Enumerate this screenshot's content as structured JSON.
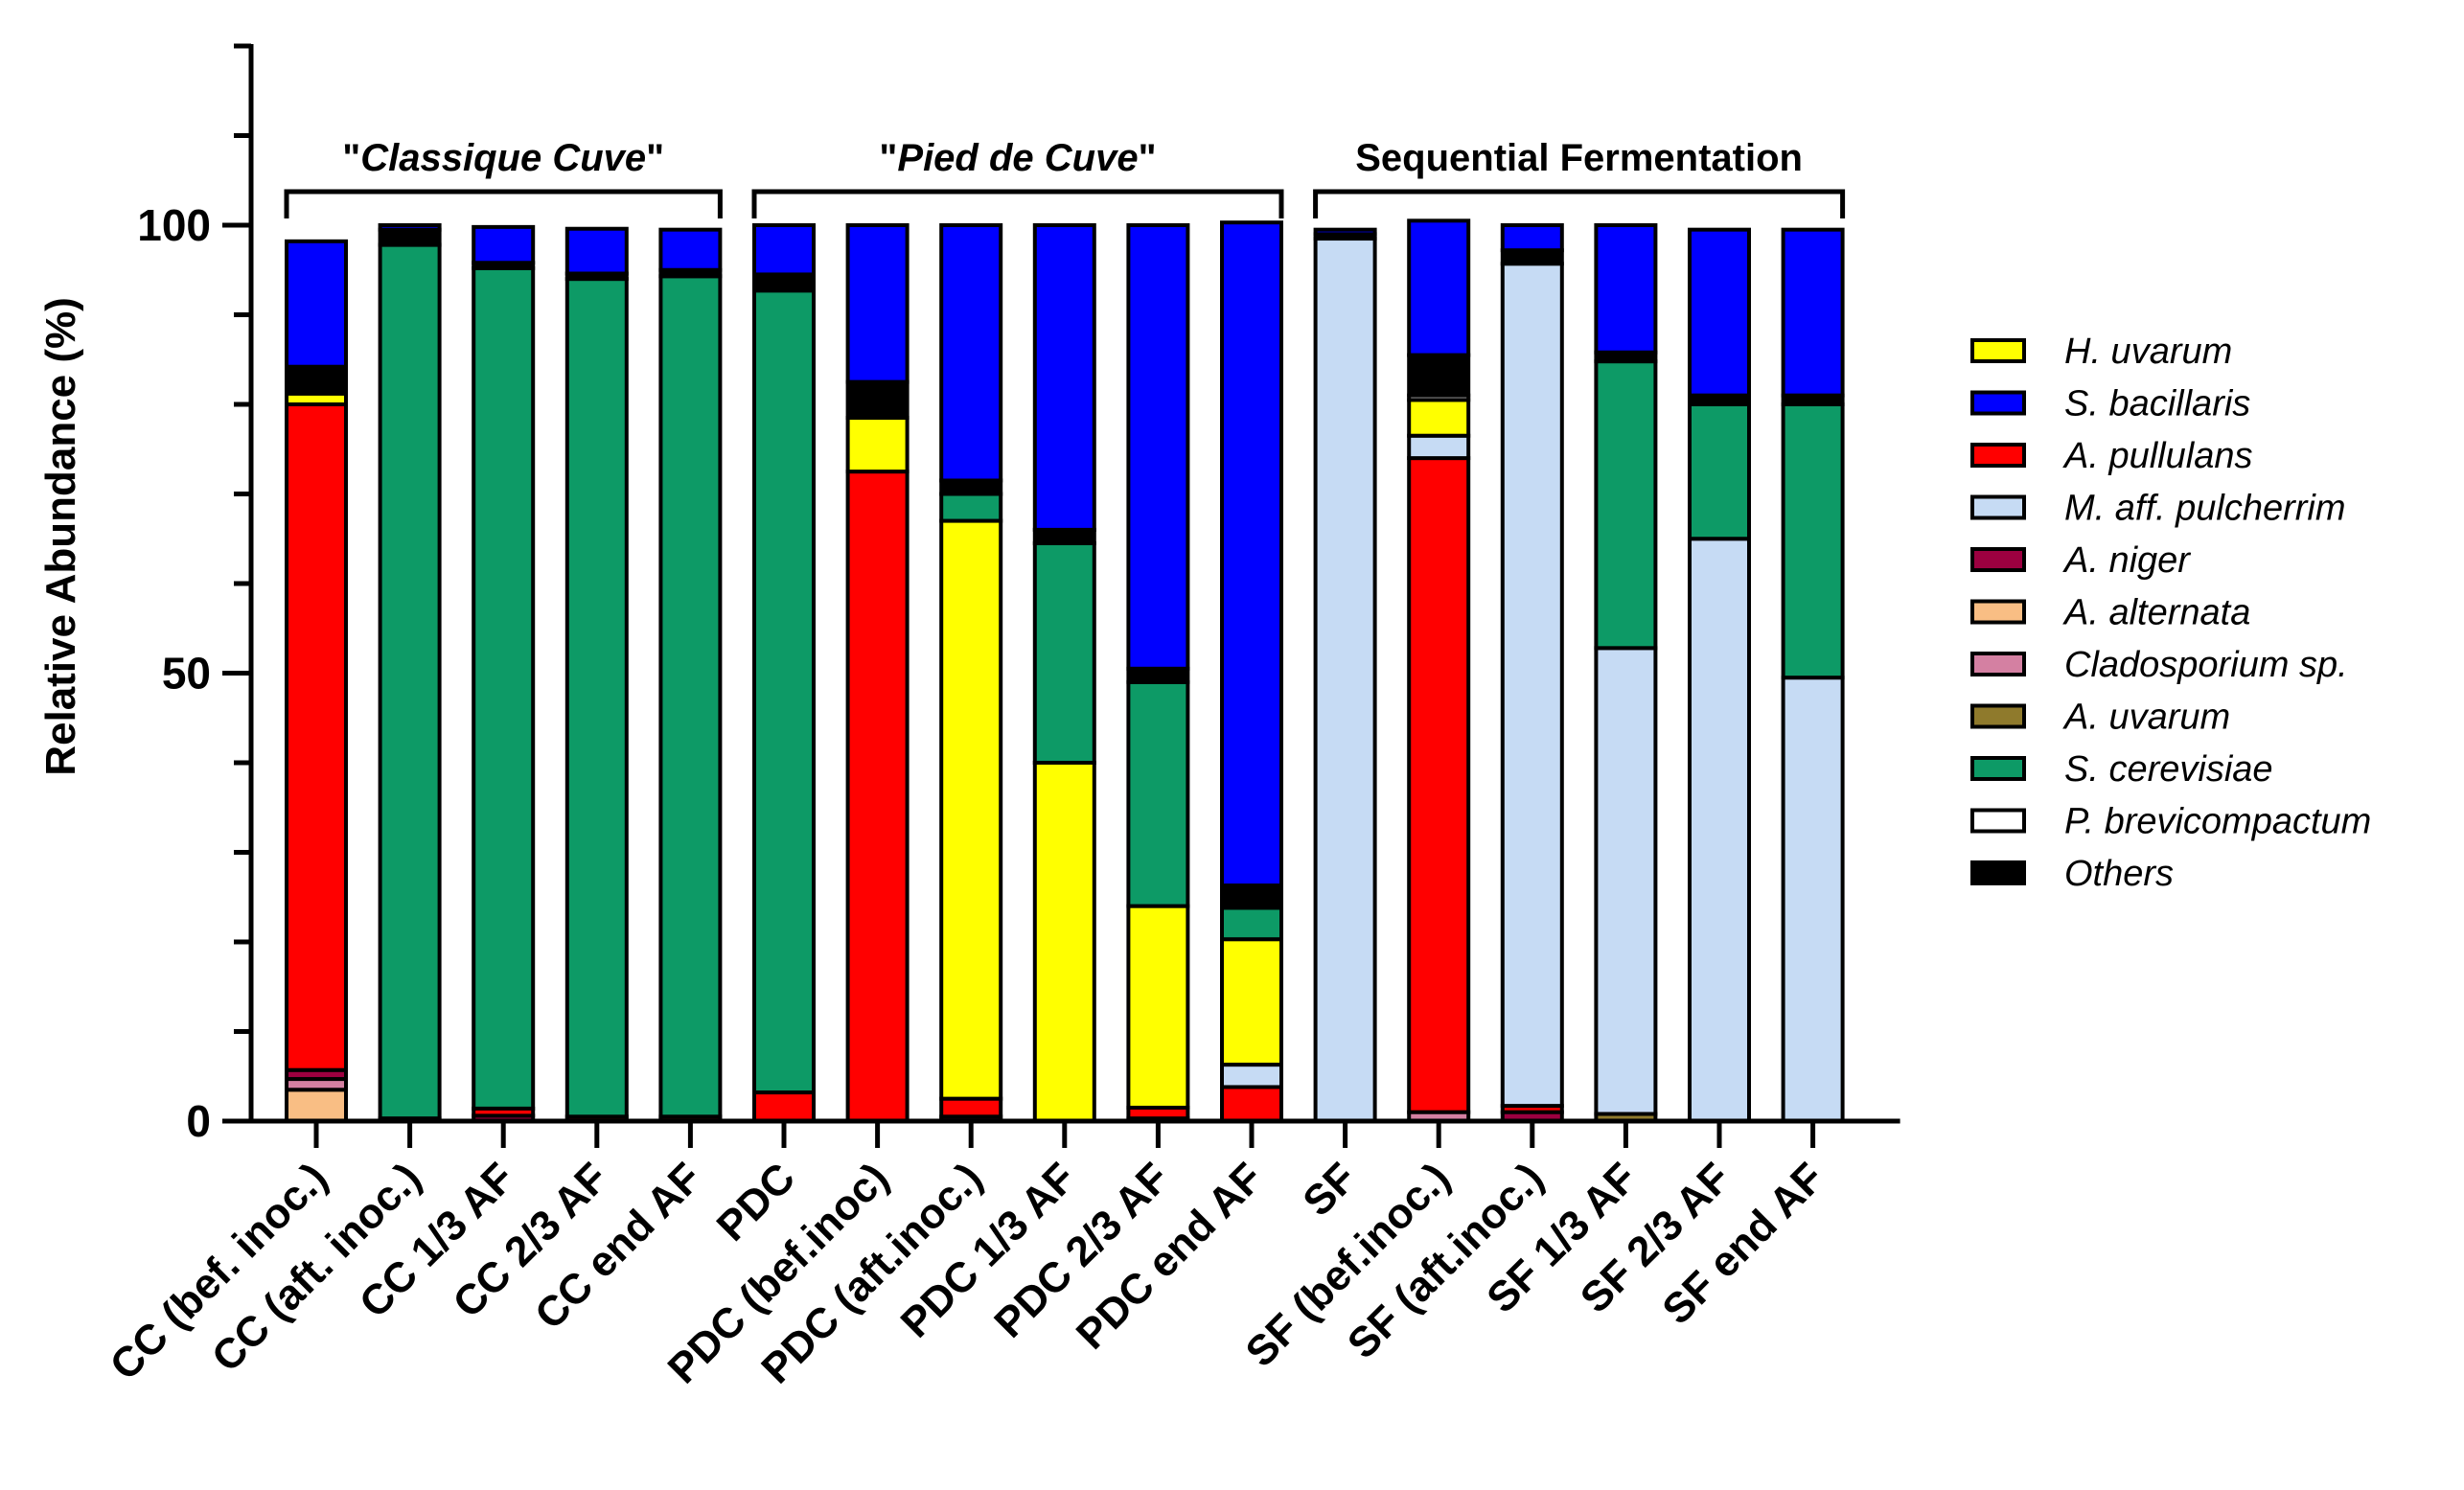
{
  "chart_data": {
    "type": "bar",
    "stacked": true,
    "ylabel": "Relative Abundance (%)",
    "ylim": [
      0,
      120
    ],
    "yticks": [
      0,
      50,
      100
    ],
    "groups": [
      {
        "label_parts": [
          {
            "text": "\"",
            "italic": false
          },
          {
            "text": "Classique Cuve",
            "italic": true
          },
          {
            "text": "\"",
            "italic": false
          }
        ],
        "start": 0,
        "end": 4
      },
      {
        "label_parts": [
          {
            "text": "\"",
            "italic": false
          },
          {
            "text": "Pied de Cuve",
            "italic": true
          },
          {
            "text": "\"",
            "italic": false
          }
        ],
        "start": 5,
        "end": 10
      },
      {
        "label_parts": [
          {
            "text": "Sequential Fermentation",
            "italic": false
          }
        ],
        "start": 11,
        "end": 16
      }
    ],
    "categories": [
      "CC (bef. inoc.)",
      "CC (aft. inoc.)",
      "CC 1/3 AF",
      "CC 2/3 AF",
      "CC end AF",
      "PDC",
      "PDC (bef.inoc)",
      "PDC (aft.inoc.)",
      "PDC 1/3 AF",
      "PDC 2/3 AF",
      "PDC end AF",
      "SF",
      "SF (bef.inoc.)",
      "SF (aft.inoc.)",
      "SF 1/3 AF",
      "SF 2/3 AF",
      "SF end AF"
    ],
    "legend_order": [
      "H. uvarum",
      "S. bacillaris",
      "A. pullulans",
      "M. aff. pulcherrim",
      "A. niger",
      "A. alternata",
      "Cladosporium sp.",
      "A. uvarum",
      "S. cerevisiae",
      "P. brevicompactum",
      "Others"
    ],
    "stack_order": [
      "A. alternata",
      "Cladosporium sp.",
      "A. uvarum",
      "A. niger",
      "A. pullulans",
      "M. aff. pulcherrim",
      "H. uvarum",
      "S. cerevisiae",
      "P. brevicompactum",
      "Others",
      "S. bacillaris"
    ],
    "colors": {
      "H. uvarum": "#ffff00",
      "S. bacillaris": "#0000ff",
      "A. pullulans": "#ff0000",
      "M. aff. pulcherrim": "#c6dbf4",
      "A. niger": "#9c0040",
      "A. alternata": "#f9be84",
      "Cladosporium sp.": "#d480a2",
      "A. uvarum": "#8f7a2c",
      "S. cerevisiae": "#0d9a66",
      "P. brevicompactum": "#ffffff",
      "Others": "#000000"
    },
    "series": [
      {
        "name": "A. alternata",
        "values": [
          3.5,
          0,
          0,
          0,
          0,
          0,
          0,
          0,
          0,
          0,
          0,
          0,
          0,
          0,
          0,
          0,
          0
        ]
      },
      {
        "name": "Cladosporium sp.",
        "values": [
          1.2,
          0,
          0,
          0,
          0,
          0,
          0,
          0,
          0,
          0,
          0,
          0,
          1.0,
          0,
          0,
          0,
          0
        ]
      },
      {
        "name": "A. uvarum",
        "values": [
          0,
          0,
          0,
          0,
          0,
          0,
          0,
          0,
          0,
          0,
          0,
          0,
          0,
          0,
          0.8,
          0,
          0
        ]
      },
      {
        "name": "A. niger",
        "values": [
          1.0,
          0.3,
          0.6,
          0,
          0,
          0,
          0,
          0.5,
          0,
          0.3,
          0,
          0,
          0,
          1.0,
          0,
          0,
          0
        ]
      },
      {
        "name": "A. pullulans",
        "values": [
          74.3,
          0,
          0.8,
          0.5,
          0.5,
          3.2,
          72.5,
          2.0,
          0,
          1.2,
          3.8,
          0,
          73.0,
          0.7,
          0,
          0,
          0
        ]
      },
      {
        "name": "M. aff. pulcherrim",
        "values": [
          0,
          0,
          0,
          0,
          0,
          0,
          0,
          0,
          0,
          0,
          2.5,
          98.5,
          2.5,
          94.0,
          52.0,
          65.0,
          49.5
        ]
      },
      {
        "name": "H. uvarum",
        "values": [
          1.2,
          0,
          0,
          0,
          0,
          0,
          6.0,
          64.5,
          40.0,
          22.5,
          14.0,
          0,
          4.0,
          0,
          0,
          0,
          0
        ]
      },
      {
        "name": "S. cerevisiae",
        "values": [
          0,
          97.5,
          93.8,
          93.5,
          93.8,
          89.5,
          0,
          3.0,
          24.5,
          25.0,
          3.5,
          0,
          0,
          0,
          32.0,
          15.0,
          30.5
        ]
      },
      {
        "name": "P. brevicompactum",
        "values": [
          0,
          0,
          0,
          0,
          0,
          0,
          0,
          0,
          0,
          0,
          0,
          0,
          0.5,
          0,
          0,
          0,
          0
        ]
      },
      {
        "name": "Others",
        "values": [
          3.0,
          1.7,
          0.6,
          0.6,
          0.7,
          1.8,
          4.0,
          1.5,
          1.5,
          1.5,
          2.5,
          0.5,
          4.5,
          1.5,
          1.0,
          1.0,
          1.0
        ]
      },
      {
        "name": "S. bacillaris",
        "values": [
          14.0,
          0.5,
          4.0,
          5.0,
          4.5,
          5.5,
          17.5,
          28.5,
          34.0,
          49.5,
          74.0,
          0.5,
          15.0,
          2.8,
          14.2,
          18.5,
          18.5
        ]
      }
    ]
  }
}
